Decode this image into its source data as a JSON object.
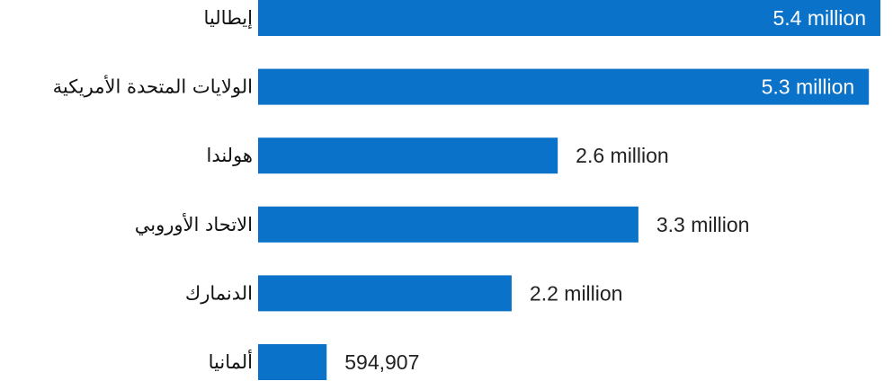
{
  "chart_data": {
    "type": "bar",
    "orientation": "horizontal",
    "categories": [
      "إيطاليا",
      "الولايات المتحدة الأمريكية",
      "هولندا",
      "الاتحاد الأوروبي",
      "الدنمارك",
      "ألمانيا"
    ],
    "values": [
      5400000,
      5300000,
      2600000,
      3300000,
      2200000,
      594907
    ],
    "value_labels": [
      "5.4 million",
      "5.3 million",
      "2.6 million",
      "3.3 million",
      "2.2 million",
      "594,907"
    ],
    "xlim": [
      0,
      5400000
    ],
    "grid": false,
    "legend": "none",
    "bar_color": "#0a72c8"
  }
}
